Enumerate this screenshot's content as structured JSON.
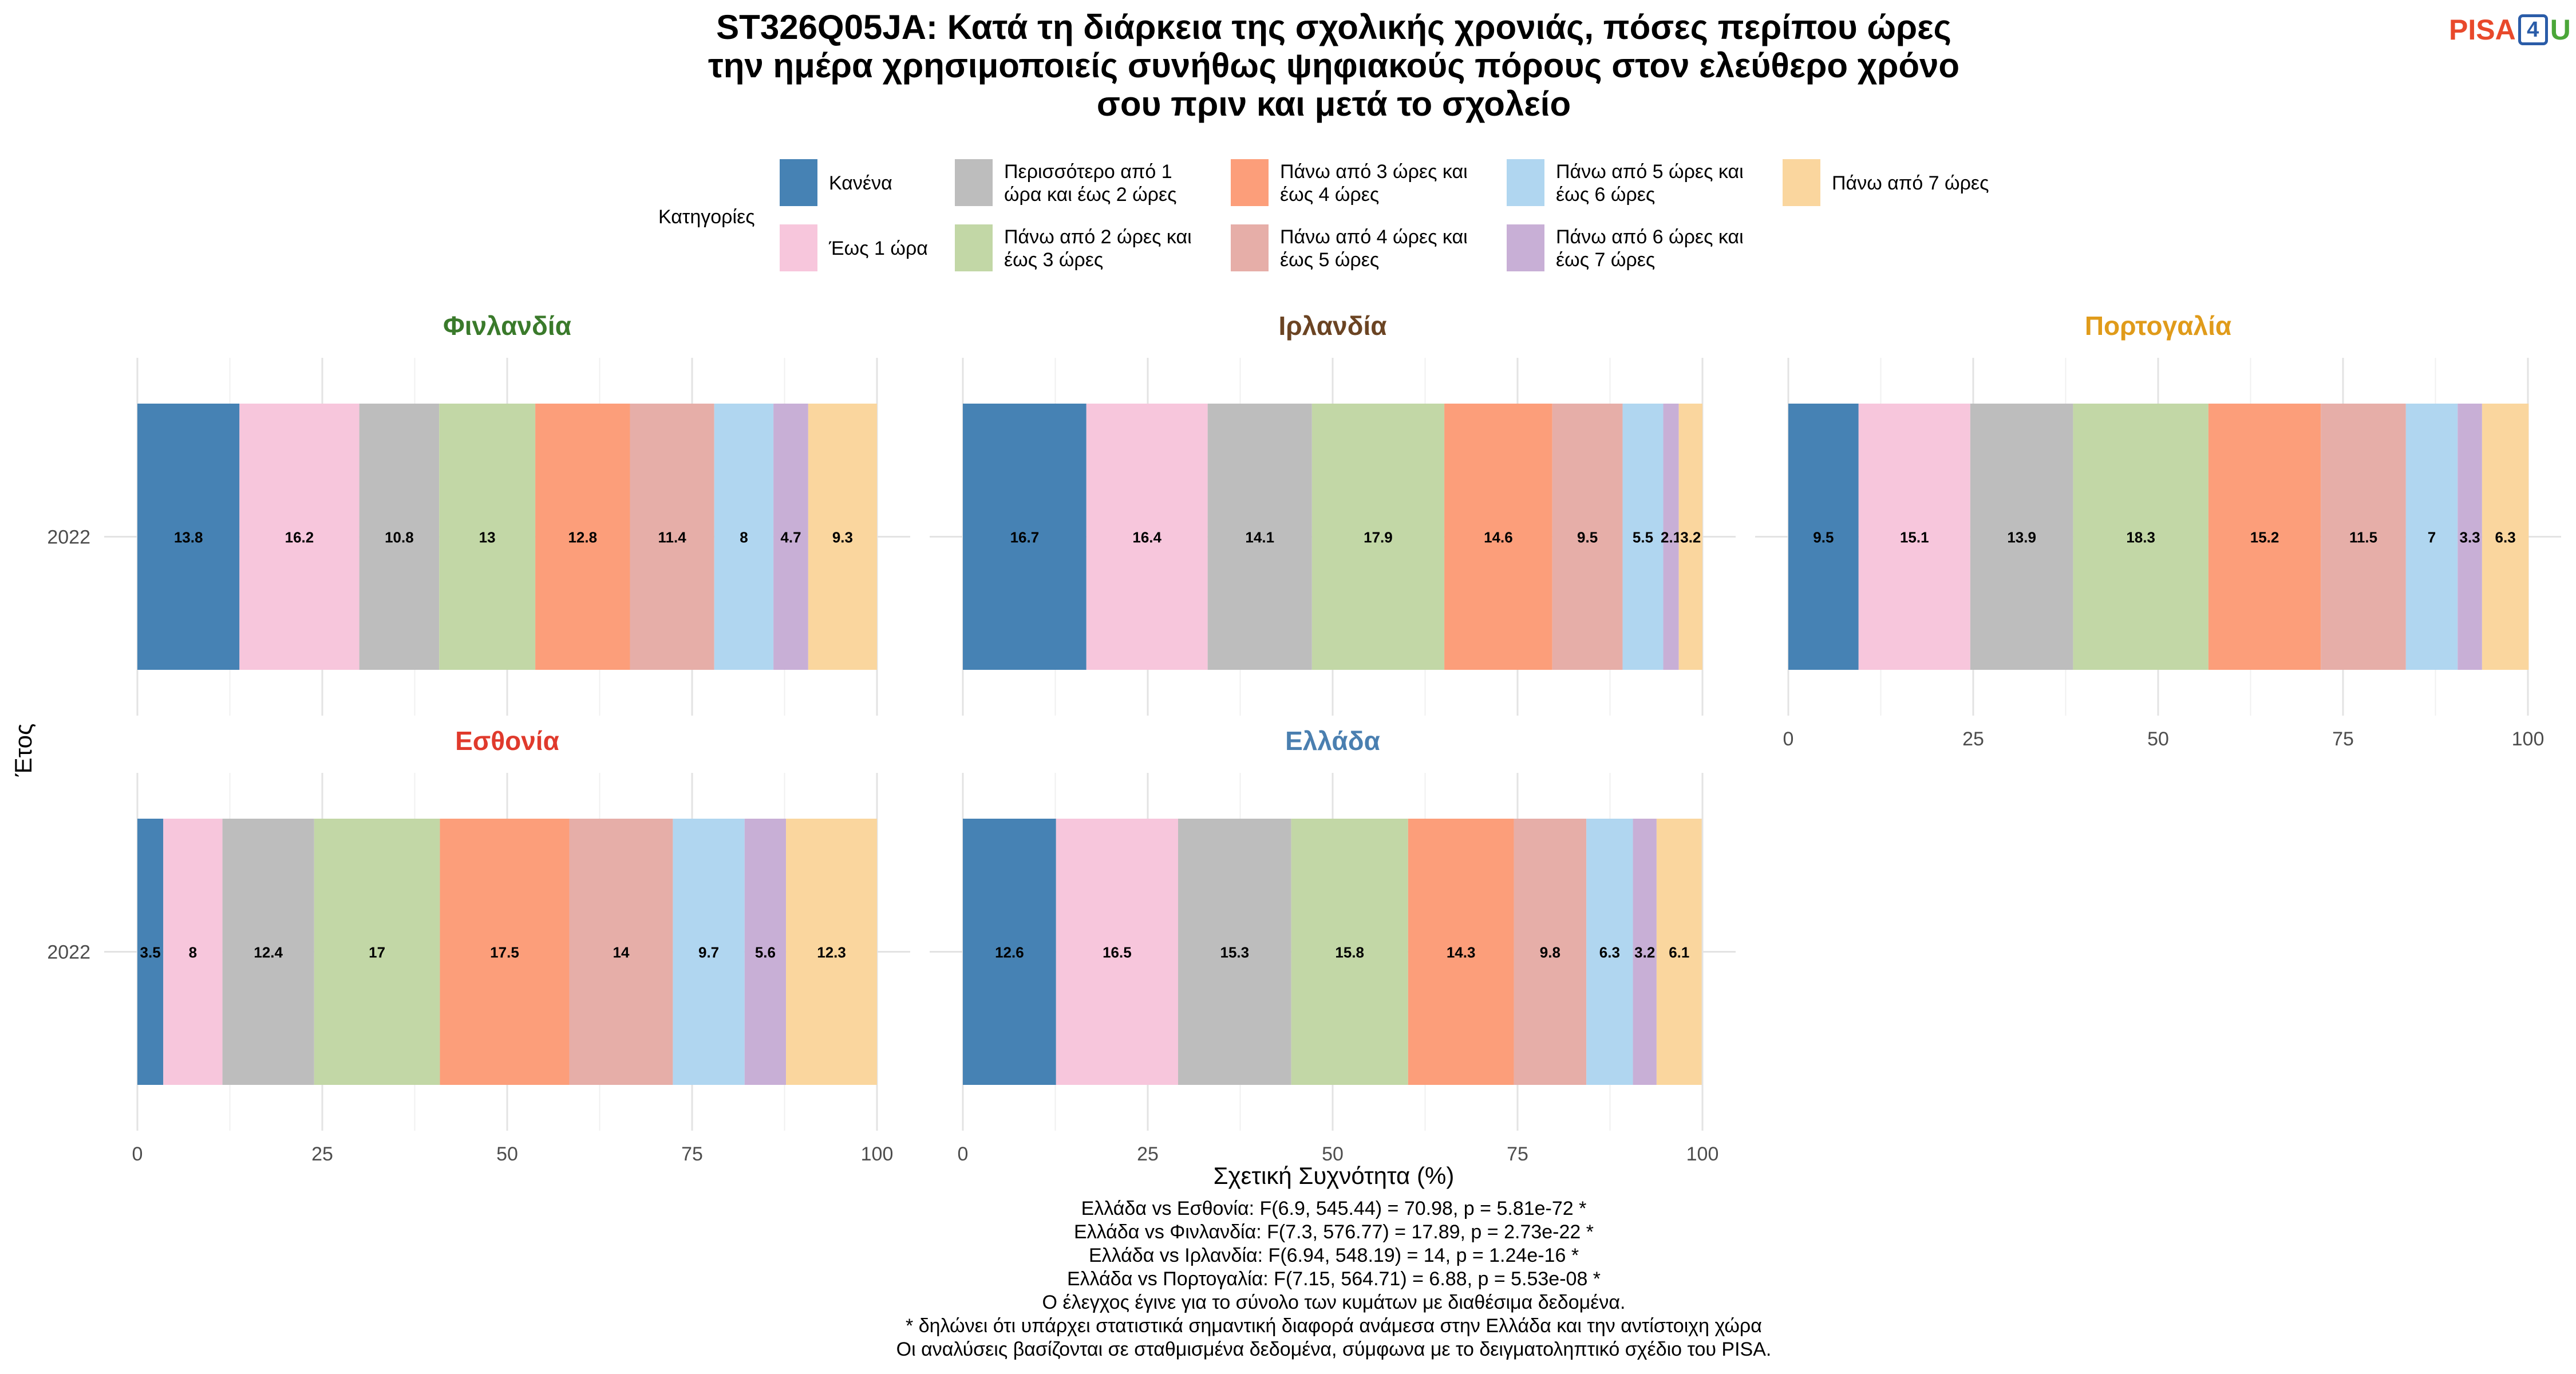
{
  "title_lines": [
    "ST326Q05JA: Κατά τη διάρκεια της σχολικής χρονιάς, πόσες περίπου ώρες",
    "την ημέρα χρησιμοποιείς συνήθως ψηφιακούς πόρους στον ελεύθερο χρόνο",
    "σου πριν και μετά το σχολείο"
  ],
  "logo": {
    "text_a": "PISA",
    "text_b": "4",
    "text_c": "U"
  },
  "legend": {
    "title": "Κατηγορίες",
    "items": [
      {
        "lines": [
          "Κανένα"
        ],
        "color": "#4682b4"
      },
      {
        "lines": [
          "Έως 1 ώρα"
        ],
        "color": "#f7c6dc"
      },
      {
        "lines": [
          "Περισσότερο από 1",
          "ώρα και έως 2 ώρες"
        ],
        "color": "#bdbdbd"
      },
      {
        "lines": [
          "Πάνω από 2 ώρες και",
          "έως 3 ώρες"
        ],
        "color": "#c2d7a6"
      },
      {
        "lines": [
          "Πάνω από 3 ώρες και",
          "έως 4 ώρες"
        ],
        "color": "#fc9e7a"
      },
      {
        "lines": [
          "Πάνω από 4 ώρες και",
          "έως 5 ώρες"
        ],
        "color": "#e6aea8"
      },
      {
        "lines": [
          "Πάνω από 5 ώρες και",
          "έως 6 ώρες"
        ],
        "color": "#b0d6f0"
      },
      {
        "lines": [
          "Πάνω από 6 ώρες και",
          "έως 7 ώρες"
        ],
        "color": "#c8afd6"
      },
      {
        "lines": [
          "Πάνω από 7 ώρες"
        ],
        "color": "#fad69e"
      }
    ]
  },
  "chart_data": {
    "type": "bar",
    "orientation": "horizontal",
    "stacked": true,
    "xlabel": "Σχετική Συχνότητα (%)",
    "ylabel": "Έτος",
    "xlim": [
      0,
      100
    ],
    "xticks": [
      0,
      25,
      50,
      75,
      100
    ],
    "category": "2022",
    "grid": true,
    "legend_position": "top",
    "panels": [
      {
        "name": "Φινλανδία",
        "title_color": "#3a7a2b",
        "year": "2022",
        "values": [
          13.8,
          16.2,
          10.8,
          13,
          12.8,
          11.4,
          8,
          4.7,
          9.3
        ]
      },
      {
        "name": "Ιρλανδία",
        "title_color": "#6b4423",
        "year": "2022",
        "values": [
          16.7,
          16.4,
          14.1,
          17.9,
          14.6,
          9.5,
          5.5,
          2.1,
          3.2
        ]
      },
      {
        "name": "Πορτογαλία",
        "title_color": "#e09b1a",
        "year": "2022",
        "values": [
          9.5,
          15.1,
          13.9,
          18.3,
          15.2,
          11.5,
          7,
          3.3,
          6.3
        ]
      },
      {
        "name": "Εσθονία",
        "title_color": "#e03a2c",
        "year": "2022",
        "values": [
          3.5,
          8,
          12.4,
          17,
          17.5,
          14,
          9.7,
          5.6,
          12.3
        ]
      },
      {
        "name": "Ελλάδα",
        "title_color": "#4a7fb0",
        "year": "2022",
        "values": [
          12.6,
          16.5,
          15.3,
          15.8,
          14.3,
          9.8,
          6.3,
          3.2,
          6.1
        ]
      }
    ]
  },
  "footnotes": [
    "Ελλάδα vs Εσθονία: F(6.9, 545.44) = 70.98, p = 5.81e-72 *",
    "Ελλάδα vs Φινλανδία: F(7.3, 576.77) = 17.89, p = 2.73e-22 *",
    "Ελλάδα vs Ιρλανδία: F(6.94, 548.19) = 14, p = 1.24e-16 *",
    "Ελλάδα vs Πορτογαλία: F(7.15, 564.71) = 6.88, p = 5.53e-08 *",
    "Ο έλεγχος έγινε για το σύνολο των κυμάτων με διαθέσιμα δεδομένα.",
    "* δηλώνει ότι υπάρχει στατιστικά σημαντική διαφορά ανάμεσα στην Ελλάδα και την αντίστοιχη χώρα",
    "Οι αναλύσεις βασίζονται σε σταθμισμένα δεδομένα, σύμφωνα με το δειγματοληπτικό σχέδιο του PISA."
  ]
}
